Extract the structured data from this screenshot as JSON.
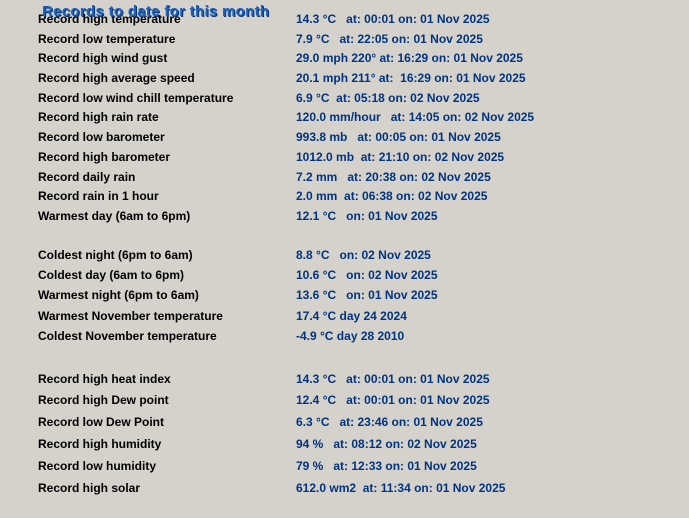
{
  "title": "Records to date for this month",
  "colors": {
    "background": "#d5d2cc",
    "title": "#1e62bc",
    "title_shadow": "#0a3470",
    "label": "#000000",
    "value": "#003380"
  },
  "sections": [
    {
      "rows": [
        {
          "label": "Record high temperature",
          "value": "14.3 °C   at: 00:01 on: 01 Nov 2025"
        },
        {
          "label": "Record low temperature",
          "value": "7.9 °C   at: 22:05 on: 01 Nov 2025"
        },
        {
          "label": "Record high wind gust",
          "value": "29.0 mph 220° at: 16:29 on: 01 Nov 2025"
        },
        {
          "label": "Record high average speed",
          "value": "20.1 mph 211° at:  16:29 on: 01 Nov 2025"
        },
        {
          "label": "Record low wind chill temperature",
          "value": "6.9 °C  at: 05:18 on: 02 Nov 2025"
        },
        {
          "label": "Record high rain rate",
          "value": "120.0 mm/hour   at: 14:05 on: 02 Nov 2025"
        },
        {
          "label": "Record low barometer",
          "value": "993.8 mb   at: 00:05 on: 01 Nov 2025"
        },
        {
          "label": "Record high barometer",
          "value": "1012.0 mb  at: 21:10 on: 02 Nov 2025"
        },
        {
          "label": "Record daily rain",
          "value": "7.2 mm   at: 20:38 on: 02 Nov 2025"
        },
        {
          "label": "Record rain in 1 hour",
          "value": "2.0 mm  at: 06:38 on: 02 Nov 2025"
        },
        {
          "label": "Warmest day (6am to 6pm)",
          "value": "12.1 °C   on: 01 Nov 2025"
        }
      ]
    },
    {
      "rows": [
        {
          "label": "Coldest night (6pm to 6am)",
          "value": "8.8 °C   on: 02 Nov 2025"
        },
        {
          "label": "Coldest day (6am to 6pm)",
          "value": "10.6 °C   on: 02 Nov 2025"
        },
        {
          "label": "Warmest night (6pm to 6am)",
          "value": "13.6 °C   on: 01 Nov 2025"
        },
        {
          "label": "Warmest November temperature",
          "value": "17.4 °C day 24 2024"
        },
        {
          "label": "Coldest November temperature",
          "value": "-4.9 °C day 28 2010"
        }
      ]
    },
    {
      "rows": [
        {
          "label": "Record high heat index",
          "value": "14.3 °C   at: 00:01 on: 01 Nov 2025"
        },
        {
          "label": "Record high Dew point",
          "value": "12.4 °C   at: 00:01 on: 01 Nov 2025"
        },
        {
          "label": "Record low Dew Point",
          "value": "6.3 °C   at: 23:46 on: 01 Nov 2025"
        },
        {
          "label": "Record high humidity",
          "value": "94 %   at: 08:12 on: 02 Nov 2025"
        },
        {
          "label": "Record low humidity",
          "value": "79 %   at: 12:33 on: 01 Nov 2025"
        },
        {
          "label": "Record high solar",
          "value": "612.0 wm2  at: 11:34 on: 01 Nov 2025"
        }
      ]
    }
  ]
}
